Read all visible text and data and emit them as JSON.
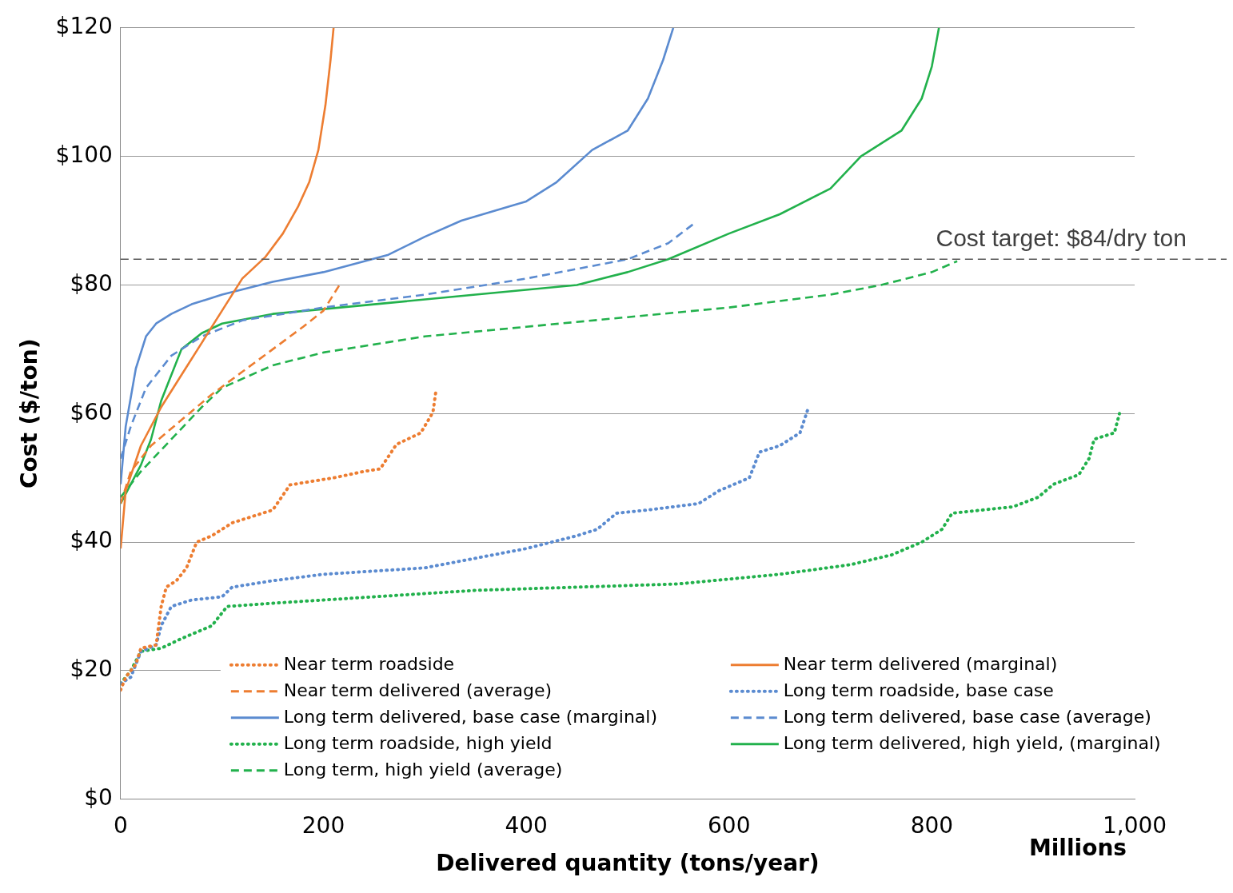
{
  "chart_data": {
    "type": "line",
    "xlabel": "Delivered quantity (tons/year)",
    "ylabel": "Cost ($/ton)",
    "xlim": [
      0,
      1000
    ],
    "xticks": [
      0,
      200,
      400,
      600,
      800,
      {
        "value": 1000,
        "label": "1,000"
      }
    ],
    "ylim": [
      0,
      120
    ],
    "yticks": [
      {
        "value": 0,
        "label": "$0"
      },
      {
        "value": 20,
        "label": "$20"
      },
      {
        "value": 40,
        "label": "$40"
      },
      {
        "value": 60,
        "label": "$60"
      },
      {
        "value": 80,
        "label": "$80"
      },
      {
        "value": 100,
        "label": "$100"
      },
      {
        "value": 120,
        "label": "$120"
      }
    ],
    "grid": "y",
    "legend": "bottom",
    "marker": "none",
    "annotations": [
      "Millions"
    ],
    "ref_lines": [
      {
        "axis": "y",
        "value": 84,
        "label": "Cost target: $84/dry ton",
        "color": "#595959",
        "line_style": "dashed"
      }
    ],
    "series": [
      {
        "name": "Near term roadside",
        "color": "#ed7d31",
        "line_style": "dotted",
        "x": [
          0,
          5,
          15,
          20,
          35,
          40,
          45,
          55,
          65,
          75,
          90,
          100,
          110,
          130,
          150,
          167,
          190,
          210,
          240,
          256,
          272,
          296,
          308,
          311
        ],
        "values": [
          17,
          19,
          21,
          23.5,
          24,
          30,
          33,
          34,
          36,
          40,
          41,
          42,
          43,
          44,
          45,
          48.9,
          49.5,
          50,
          51,
          51.4,
          55.2,
          57,
          60.2,
          63.6
        ]
      },
      {
        "name": "Near term delivered (marginal)",
        "color": "#ed7d31",
        "line_style": "solid",
        "x": [
          0,
          5,
          20,
          40,
          60,
          80,
          100,
          120,
          143,
          160,
          175,
          186,
          195,
          202,
          207,
          210
        ],
        "values": [
          39,
          48,
          55,
          61,
          66,
          71,
          76,
          81,
          84.4,
          88,
          92.2,
          96,
          101,
          108,
          115,
          120
        ]
      },
      {
        "name": "Near term delivered (average)",
        "color": "#ed7d31",
        "line_style": "dashed",
        "x": [
          0,
          10,
          30,
          60,
          90,
          120,
          150,
          180,
          200,
          217
        ],
        "values": [
          46,
          51,
          55,
          59,
          63,
          66.5,
          70,
          73.5,
          76,
          80.3
        ]
      },
      {
        "name": "Long term roadside, base case",
        "color": "#5b8bd0",
        "line_style": "dotted",
        "x": [
          0,
          10,
          20,
          35,
          40,
          50,
          70,
          100,
          110,
          150,
          200,
          250,
          300,
          350,
          400,
          450,
          470,
          489,
          520,
          570,
          590,
          620,
          630,
          650,
          670,
          678
        ],
        "values": [
          18,
          19,
          23,
          24,
          27,
          30,
          31,
          31.5,
          33,
          34,
          35,
          35.5,
          36,
          37.5,
          39,
          41,
          42,
          44.5,
          45,
          46,
          48,
          50,
          54,
          55,
          57,
          60.8
        ]
      },
      {
        "name": "Long term delivered, base case (marginal)",
        "color": "#5b8bd0",
        "line_style": "solid",
        "x": [
          0,
          5,
          15,
          25,
          35,
          50,
          70,
          100,
          150,
          200,
          264,
          300,
          336,
          400,
          430,
          465,
          500,
          520,
          535,
          545
        ],
        "values": [
          49,
          58,
          67,
          72,
          74,
          75.5,
          77,
          78.5,
          80.5,
          82,
          84.7,
          87.5,
          90,
          93,
          96,
          101,
          104,
          109,
          115,
          120
        ]
      },
      {
        "name": "Long term delivered, base case (average)",
        "color": "#5b8bd0",
        "line_style": "dashed",
        "x": [
          0,
          10,
          25,
          50,
          80,
          120,
          200,
          300,
          400,
          500,
          540,
          565
        ],
        "values": [
          53,
          58,
          64,
          69,
          72,
          74.5,
          76.5,
          78.5,
          81,
          84,
          86.5,
          89.5
        ]
      },
      {
        "name": "Long term roadside, high yield",
        "color": "#22b14c",
        "line_style": "dotted",
        "x": [
          0,
          10,
          20,
          40,
          60,
          90,
          105,
          150,
          250,
          350,
          450,
          550,
          650,
          720,
          760,
          790,
          810,
          820,
          880,
          905,
          920,
          945,
          955,
          960,
          980,
          985
        ],
        "values": [
          18,
          20,
          23,
          23.5,
          25,
          27,
          30,
          30.5,
          31.5,
          32.5,
          33,
          33.5,
          35,
          36.5,
          38,
          40,
          42,
          44.5,
          45.5,
          47,
          49,
          50.5,
          53,
          56,
          57,
          60
        ]
      },
      {
        "name": "Long term delivered, high yield, (marginal)",
        "color": "#22b14c",
        "line_style": "solid",
        "x": [
          0,
          10,
          20,
          30,
          40,
          60,
          80,
          100,
          150,
          250,
          350,
          450,
          500,
          540,
          600,
          650,
          700,
          730,
          770,
          790,
          800,
          807
        ],
        "values": [
          46,
          49,
          52,
          56,
          62,
          70,
          72.5,
          74,
          75.5,
          77,
          78.5,
          80,
          82,
          84,
          88,
          91,
          95,
          100,
          104,
          109,
          114,
          120
        ]
      },
      {
        "name": "Long term, high yield (average)",
        "color": "#22b14c",
        "line_style": "dashed",
        "x": [
          0,
          20,
          50,
          80,
          100,
          150,
          200,
          300,
          400,
          500,
          600,
          700,
          750,
          800,
          825
        ],
        "values": [
          47,
          51,
          56,
          61,
          64,
          67.5,
          69.5,
          72,
          73.5,
          75,
          76.5,
          78.5,
          80,
          82,
          83.7
        ]
      }
    ]
  }
}
